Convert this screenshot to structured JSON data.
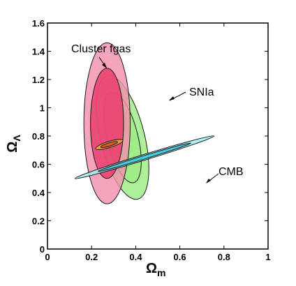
{
  "chart_data": {
    "type": "contour",
    "xlabel": {
      "main": "Ω",
      "sub": "m"
    },
    "ylabel": {
      "main": "Ω",
      "sub": "Λ"
    },
    "xlim": [
      0,
      1
    ],
    "ylim": [
      0,
      1.6
    ],
    "xticks": [
      0,
      0.2,
      0.4,
      0.6,
      0.8,
      1
    ],
    "xtick_labels": [
      "0",
      "0.2",
      "0.4",
      "0.6",
      "0.8",
      "1"
    ],
    "yticks": [
      0,
      0.2,
      0.4,
      0.6,
      0.8,
      1.0,
      1.2,
      1.4,
      1.6
    ],
    "ytick_labels": [
      "0",
      "0.2",
      "0.4",
      "0.6",
      "0.8",
      "1",
      "1.2",
      "1.4",
      "1.6"
    ],
    "grid": false,
    "annotations": [
      {
        "text": "Cluster fgas",
        "points_to": "fgas-contours"
      },
      {
        "text": "SNIa",
        "points_to": "snia-contours"
      },
      {
        "text": "CMB",
        "points_to": "cmb-contours"
      }
    ],
    "contours": [
      {
        "name": "SNIa",
        "color": "#9cec84",
        "levels": [
          {
            "level": "outer",
            "center": [
              0.34,
              0.79
            ],
            "semi_axes": [
              0.1,
              0.45
            ],
            "angle_deg": -14
          },
          {
            "level": "inner",
            "center": [
              0.34,
              0.79
            ],
            "semi_axes": [
              0.07,
              0.33
            ],
            "angle_deg": -14
          }
        ]
      },
      {
        "name": "Cluster fgas",
        "color": "#f290ac",
        "levels": [
          {
            "level": "outer",
            "center": [
              0.27,
              0.89
            ],
            "semi_axes": [
              0.105,
              0.57
            ],
            "angle_deg": 0
          },
          {
            "level": "inner",
            "center": [
              0.27,
              0.89
            ],
            "semi_axes": [
              0.075,
              0.39
            ],
            "angle_deg": 0
          }
        ],
        "inner_color": "#ea3b6b"
      },
      {
        "name": "CMB",
        "color": "#9ef0f4",
        "levels": [
          {
            "level": "outer",
            "center": [
              0.44,
              0.65
            ],
            "semi_axes": [
              0.33,
              0.02
            ],
            "angle_deg": -17
          },
          {
            "level": "inner",
            "center": [
              0.44,
              0.65
            ],
            "semi_axes": [
              0.22,
              0.012
            ],
            "angle_deg": -17
          }
        ],
        "inner_color": "#2cc6df"
      },
      {
        "name": "combined",
        "color": "#f0a838",
        "levels": [
          {
            "level": "outer",
            "center": [
              0.28,
              0.74
            ],
            "semi_axes": [
              0.065,
              0.022
            ],
            "angle_deg": -17
          },
          {
            "level": "inner",
            "center": [
              0.28,
              0.74
            ],
            "semi_axes": [
              0.04,
              0.012
            ],
            "angle_deg": -17
          }
        ],
        "inner_color": "#dc4a1c"
      }
    ]
  }
}
